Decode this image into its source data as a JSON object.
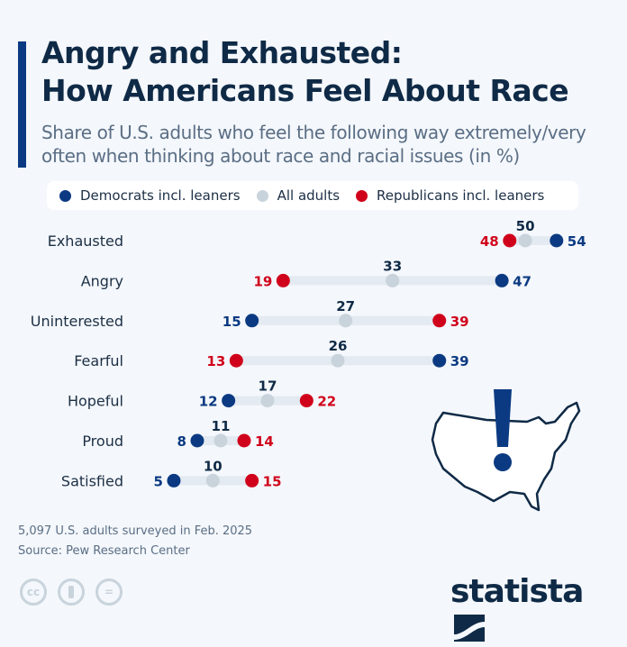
{
  "header": {
    "title_line1": "Angry and Exhausted:",
    "title_line2": "How Americans Feel About Race",
    "subtitle_line1": "Share of U.S. adults who feel the following way extremely/very",
    "subtitle_line2": "often when thinking about race and racial issues (in %)"
  },
  "colors": {
    "democrats": "#0b3a82",
    "all": "#c8d3dc",
    "republicans": "#d0021b",
    "title": "#0f2a46"
  },
  "chart_data": {
    "type": "dot-plot",
    "legend_placement": "top",
    "categories": [
      "Exhausted",
      "Angry",
      "Uninterested",
      "Fearful",
      "Hopeful",
      "Proud",
      "Satisfied"
    ],
    "series": [
      {
        "name": "Democrats incl. leaners",
        "values": [
          54,
          47,
          15,
          39,
          12,
          8,
          5
        ]
      },
      {
        "name": "All adults",
        "values": [
          50,
          33,
          27,
          26,
          17,
          11,
          10
        ]
      },
      {
        "name": "Republicans incl. leaners",
        "values": [
          48,
          19,
          39,
          13,
          22,
          14,
          15
        ]
      }
    ]
  },
  "footer": {
    "note": "5,097 U.S. adults surveyed in Feb. 2025",
    "source": "Source: Pew Research Center",
    "brand": "statista",
    "cc": "cc",
    "eq": "="
  },
  "icons": {
    "map": "us-map-exclamation-icon",
    "license": [
      "cc-icon",
      "by-icon",
      "nd-icon"
    ]
  }
}
